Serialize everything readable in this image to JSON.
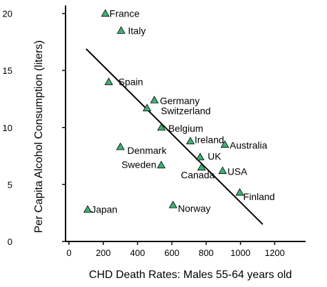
{
  "chart_data": {
    "type": "scatter",
    "xlabel": "CHD Death Rates: Males 55-64 years old",
    "ylabel": "Per Capita Alcohol Consumption (liters)",
    "xlim": [
      -20,
      1380
    ],
    "ylim": [
      0,
      20.7
    ],
    "x_ticks": [
      0,
      200,
      400,
      600,
      800,
      1000,
      1200
    ],
    "y_ticks": [
      0,
      5,
      10,
      15,
      20
    ],
    "grid": false,
    "legend": "none",
    "marker_color": "#3cb371",
    "points": [
      {
        "label": "France",
        "x": 212,
        "y": 20.0
      },
      {
        "label": "Italy",
        "x": 304,
        "y": 18.5
      },
      {
        "label": "Spain",
        "x": 232,
        "y": 14.0
      },
      {
        "label": "Germany",
        "x": 498,
        "y": 12.4
      },
      {
        "label": "Switzerland",
        "x": 455,
        "y": 11.7
      },
      {
        "label": "Belgium",
        "x": 539,
        "y": 10.0
      },
      {
        "label": "Ireland",
        "x": 708,
        "y": 8.8
      },
      {
        "label": "Australia",
        "x": 909,
        "y": 8.5
      },
      {
        "label": "Denmark",
        "x": 300,
        "y": 8.3
      },
      {
        "label": "UK",
        "x": 765,
        "y": 7.4
      },
      {
        "label": "Sweden",
        "x": 538,
        "y": 6.7
      },
      {
        "label": "Canada",
        "x": 773,
        "y": 6.5
      },
      {
        "label": "USA",
        "x": 896,
        "y": 6.2
      },
      {
        "label": "Finland",
        "x": 996,
        "y": 4.3
      },
      {
        "label": "Japan",
        "x": 109,
        "y": 2.8
      },
      {
        "label": "Norway",
        "x": 607,
        "y": 3.2
      }
    ],
    "trendline": {
      "x": [
        100,
        1130
      ],
      "y": [
        16.9,
        1.5
      ]
    }
  }
}
